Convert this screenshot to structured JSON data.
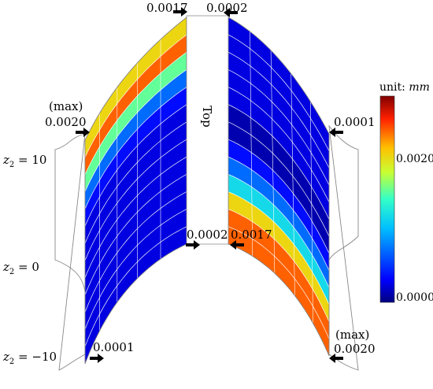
{
  "figure": {
    "top_label": "Top",
    "colorbar": {
      "title_prefix": "unit: ",
      "title_unit": "mm",
      "ticks": [
        "0.0020",
        "0.0000"
      ],
      "tick_values": [
        0.002,
        0.0
      ],
      "range": [
        0.0,
        0.0024
      ]
    },
    "z_labels": [
      {
        "prefix": "z",
        "sub": "2",
        "text": " = 10"
      },
      {
        "prefix": "z",
        "sub": "2",
        "text": " = 0"
      },
      {
        "prefix": "z",
        "sub": "2",
        "text": " = −10"
      }
    ],
    "annotations": {
      "left_top_inner": "0.0017",
      "right_top_inner": "0.0002",
      "left_max_tag": "(max)",
      "left_max_value": "0.0020",
      "right_upper_value": "0.0001",
      "left_lower_inner": "0.0002",
      "right_lower_inner": "0.0017",
      "left_bottom_value": "0.0001",
      "right_max_tag": "(max)",
      "right_max_value": "0.0020"
    },
    "panels": {
      "left_bands": [
        0.0017,
        0.002,
        0.0013,
        0.0006,
        0.0003,
        0.0002,
        0.0002,
        0.0002,
        0.0002,
        0.0002,
        0.0002,
        0.0002,
        0.0002
      ],
      "right_bands": [
        0.0002,
        0.0002,
        0.0002,
        0.0002,
        0.0002,
        0.0001,
        0.0001,
        0.0003,
        0.0006,
        0.001,
        0.0017,
        0.002,
        0.002
      ]
    }
  }
}
